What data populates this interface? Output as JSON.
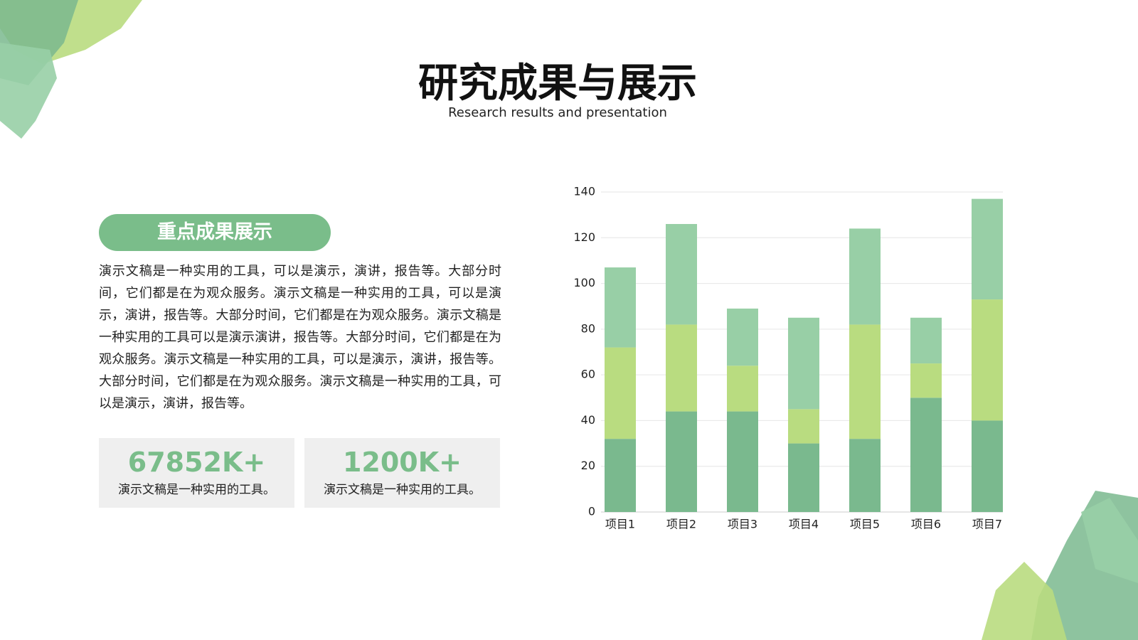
{
  "header": {
    "title": "研究成果与展示",
    "subtitle": "Research results and presentation"
  },
  "panel": {
    "badge": "重点成果展示",
    "paragraph": "演示文稿是一种实用的工具，可以是演示，演讲，报告等。大部分时间，它们都是在为观众服务。演示文稿是一种实用的工具，可以是演示，演讲，报告等。大部分时间，它们都是在为观众服务。演示文稿是一种实用的工具可以是演示演讲，报告等。大部分时间，它们都是在为观众服务。演示文稿是一种实用的工具，可以是演示，演讲，报告等。大部分时间，它们都是在为观众服务。演示文稿是一种实用的工具，可以是演示，演讲，报告等。",
    "stats": [
      {
        "value": "67852K+",
        "caption": "演示文稿是一种实用的工具。"
      },
      {
        "value": "1200K+",
        "caption": "演示文稿是一种实用的工具。"
      }
    ]
  },
  "chart_data": {
    "type": "stacked_bar",
    "categories": [
      "项目1",
      "项目2",
      "项目3",
      "项目4",
      "项目5",
      "项目6",
      "项目7"
    ],
    "series": [
      {
        "color": "#7ab98e",
        "values": [
          32,
          44,
          44,
          30,
          32,
          50,
          40
        ]
      },
      {
        "color": "#b9dc80",
        "values": [
          40,
          38,
          20,
          15,
          50,
          15,
          53
        ]
      },
      {
        "color": "#98cfa6",
        "values": [
          35,
          44,
          25,
          40,
          42,
          20,
          44
        ]
      }
    ],
    "ylim": [
      0,
      140
    ],
    "yticks": [
      0,
      20,
      40,
      60,
      80,
      100,
      120,
      140
    ],
    "grid": true
  }
}
